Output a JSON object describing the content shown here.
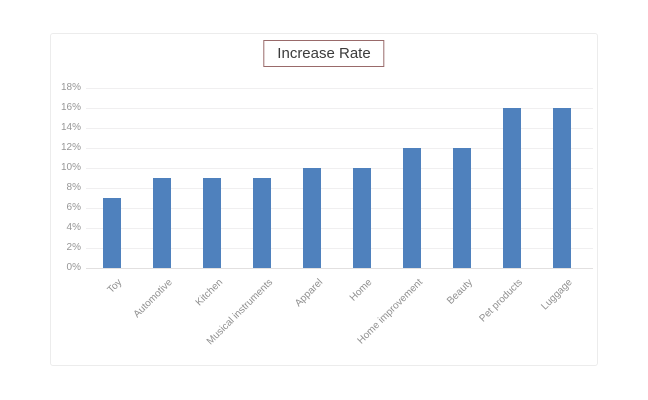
{
  "chart_data": {
    "type": "bar",
    "title": "Increase Rate",
    "categories": [
      "Toy",
      "Automotive",
      "Kitchen",
      "Musical instruments",
      "Apparel",
      "Home",
      "Home improvement",
      "Beauty",
      "Pet products",
      "Luggage"
    ],
    "values": [
      7,
      9,
      9,
      9,
      10,
      10,
      12,
      12,
      16,
      16
    ],
    "unit": "%",
    "xlabel": "",
    "ylabel": "",
    "ylim": [
      0,
      18
    ],
    "ytick_step": 2,
    "ytick_labels": [
      "0%",
      "2%",
      "4%",
      "6%",
      "8%",
      "10%",
      "12%",
      "14%",
      "16%",
      "18%"
    ],
    "grid": true,
    "legend": false,
    "bar_color": "#4f81bd"
  },
  "colors": {
    "bar": "#4f81bd",
    "title_border": "#996a6a",
    "title_text": "#3b3b3b",
    "axis_text": "#969696",
    "x_axis_text": "#8f8f8f",
    "gridline": "#f0eff0",
    "axis_line": "#e2e0e0",
    "panel_border": "#ececec",
    "page_background": "#ffffff"
  }
}
